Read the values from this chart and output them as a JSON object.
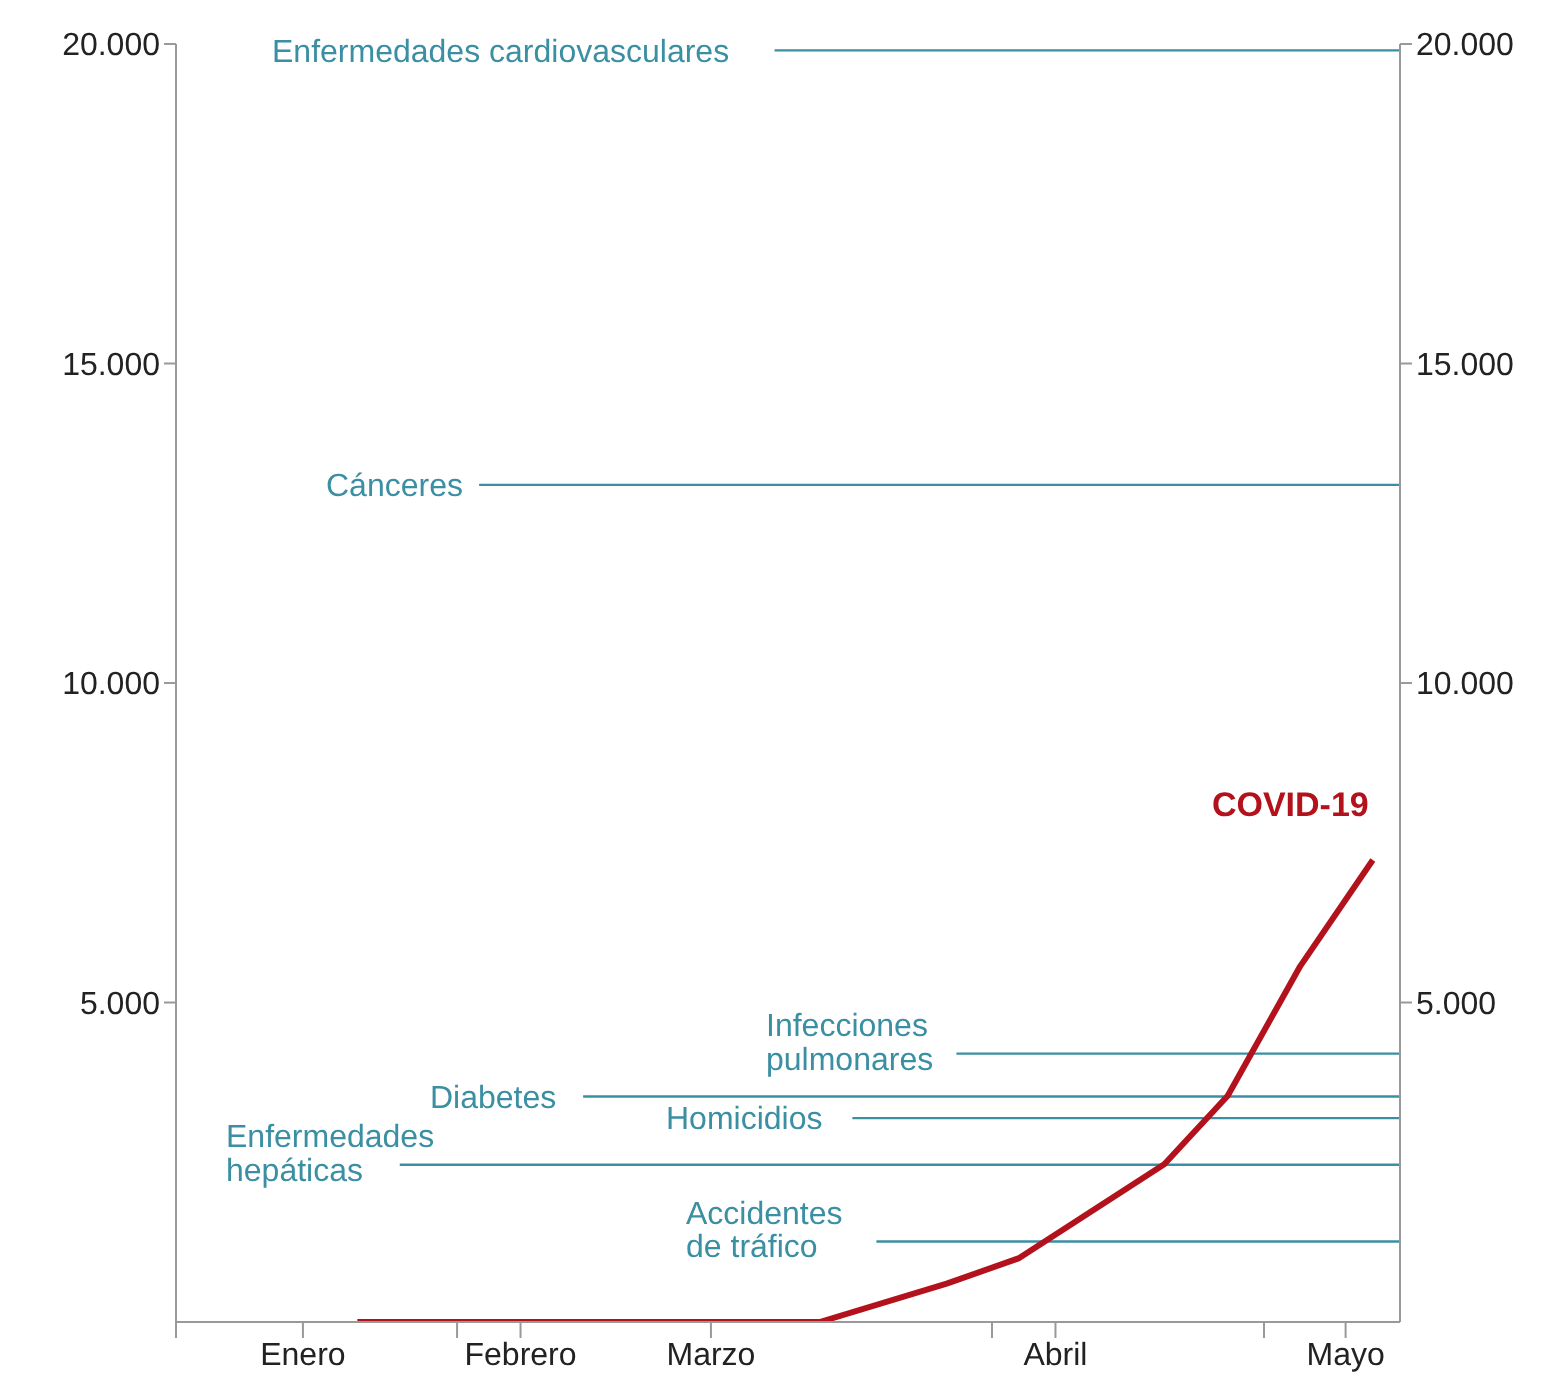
{
  "chart_data": {
    "type": "line",
    "x": [
      "--01-21",
      "--03-13",
      "--03-27",
      "--04-04",
      "--04-20",
      "--04-27",
      "--05-05",
      "--05-13"
    ],
    "series": [
      {
        "name": "COVID-19",
        "color": "#b3121c",
        "values": [
          0,
          0,
          600,
          1000,
          2470,
          3540,
          5570,
          7230
        ]
      }
    ],
    "xlim": [
      "--01-01",
      "--05-16"
    ],
    "xticks": [
      {
        "value": "--01-01",
        "label": null
      },
      {
        "value": "--01-15",
        "label": "Enero"
      },
      {
        "value": "--02-01",
        "label": null
      },
      {
        "value": "--02-08",
        "label": "Febrero"
      },
      {
        "value": "--03-01",
        "label": "Marzo"
      },
      {
        "value": "--04-01",
        "label": null
      },
      {
        "value": "--04-08",
        "label": "Abril"
      },
      {
        "value": "--05-01",
        "label": null
      },
      {
        "value": "--05-10",
        "label": "Mayo"
      }
    ],
    "ylim": [
      0,
      20000
    ],
    "yticks": [
      {
        "value": 5000,
        "label": "5.000"
      },
      {
        "value": 10000,
        "label": "10.000"
      },
      {
        "value": 15000,
        "label": "15.000"
      },
      {
        "value": 20000,
        "label": "20.000"
      }
    ],
    "y2lim": [
      0,
      20000
    ],
    "y2ticks": [
      {
        "value": 5000,
        "label": "5.000"
      },
      {
        "value": 10000,
        "label": "10.000"
      },
      {
        "value": 15000,
        "label": "15.000"
      },
      {
        "value": 20000,
        "label": "20.000"
      }
    ],
    "marker": "none",
    "ref_lines": [
      {
        "axis": "y",
        "value": 19900,
        "label": "Enfermedades cardiovasculares",
        "color": "#3b8fa3"
      },
      {
        "axis": "y",
        "value": 13100,
        "label": "Cánceres",
        "color": "#3b8fa3"
      },
      {
        "axis": "y",
        "value": 4200,
        "label": "Infecciones pulmonares",
        "color": "#3b8fa3"
      },
      {
        "axis": "y",
        "value": 3530,
        "label": "Diabetes",
        "color": "#3b8fa3"
      },
      {
        "axis": "y",
        "value": 3190,
        "label": "Homicidios",
        "color": "#3b8fa3"
      },
      {
        "axis": "y",
        "value": 2460,
        "label": "Enfermedades hepáticas",
        "color": "#3b8fa3"
      },
      {
        "axis": "y",
        "value": 1260,
        "label": "Accidentes de tráfico",
        "color": "#3b8fa3"
      }
    ]
  }
}
